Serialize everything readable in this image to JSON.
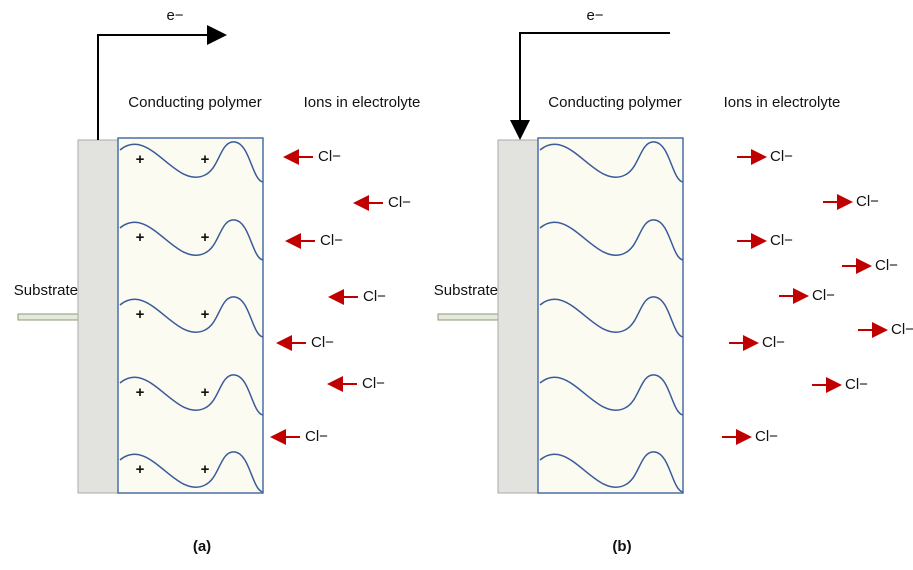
{
  "panels": [
    {
      "electron": "e−",
      "polymer_label": "Conducting polymer",
      "ions_label": "Ions in electrolyte",
      "substrate_label": "Substrate",
      "ions": [
        "Cl−",
        "Cl−",
        "Cl−",
        "Cl−",
        "Cl−",
        "Cl−",
        "Cl−"
      ],
      "charges": [
        "+",
        "+",
        "+",
        "+",
        "+",
        "+",
        "+",
        "+",
        "+",
        "+"
      ],
      "label": "(a)"
    },
    {
      "electron": "e−",
      "polymer_label": "Conducting polymer",
      "ions_label": "Ions in electrolyte",
      "substrate_label": "Substrate",
      "ions": [
        "Cl−",
        "Cl−",
        "Cl−",
        "Cl−",
        "Cl−",
        "Cl−",
        "Cl−",
        "Cl−",
        "Cl−"
      ],
      "charges": [],
      "label": "(b)"
    }
  ]
}
